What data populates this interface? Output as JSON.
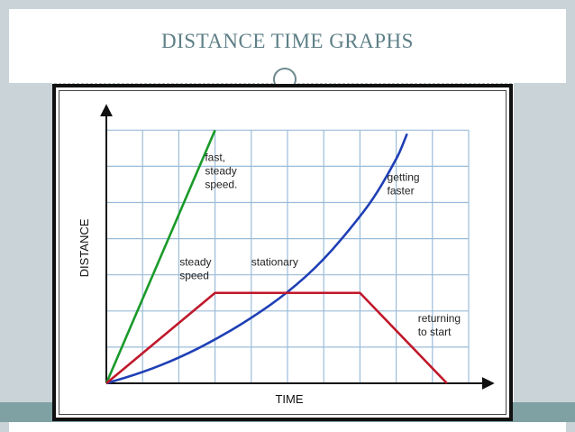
{
  "slide": {
    "title": "DISTANCE TIME GRAPHS"
  },
  "colors": {
    "fast": "#1a9a2a",
    "accelerating": "#1f3fb5",
    "journey": "#c0182a",
    "grid": "#9bbcd8",
    "title": "#5e7f86",
    "band": "#7fa1a4"
  },
  "chart_data": {
    "type": "line",
    "title": "",
    "xlabel": "TIME",
    "ylabel": "DISTANCE",
    "xlim": [
      0,
      10.5
    ],
    "ylim": [
      0,
      7.2
    ],
    "grid": true,
    "series": [
      {
        "key": "fast",
        "points": [
          [
            0,
            0
          ],
          [
            3,
            7
          ]
        ]
      },
      {
        "key": "accelerating",
        "points": [
          [
            0,
            0
          ],
          [
            1,
            0.3
          ],
          [
            2,
            0.7
          ],
          [
            3,
            1.2
          ],
          [
            4,
            1.8
          ],
          [
            5,
            2.5
          ],
          [
            6,
            3.4
          ],
          [
            7,
            4.6
          ],
          [
            7.5,
            5.3
          ],
          [
            8,
            6.2
          ],
          [
            8.1,
            6.4
          ],
          [
            8.3,
            6.9
          ]
        ]
      },
      {
        "key": "journey",
        "points": [
          [
            0,
            0
          ],
          [
            3,
            2.5
          ],
          [
            7,
            2.5
          ],
          [
            9.4,
            0
          ]
        ]
      }
    ],
    "annotations": [
      {
        "lines": [
          "fast,",
          "steady",
          "speed."
        ],
        "x": 2.72,
        "y": 6.15,
        "color": "#222222"
      },
      {
        "lines": [
          "getting",
          "faster"
        ],
        "x": 7.75,
        "y": 5.6,
        "color": "#222222"
      },
      {
        "lines": [
          "steady",
          "speed"
        ],
        "x": 2.02,
        "y": 3.25,
        "color": "#222222"
      },
      {
        "lines": [
          "stationary"
        ],
        "x": 4.0,
        "y": 3.25,
        "color": "#222222"
      },
      {
        "lines": [
          "returning",
          "to start"
        ],
        "x": 8.6,
        "y": 1.7,
        "color": "#222222"
      }
    ]
  }
}
